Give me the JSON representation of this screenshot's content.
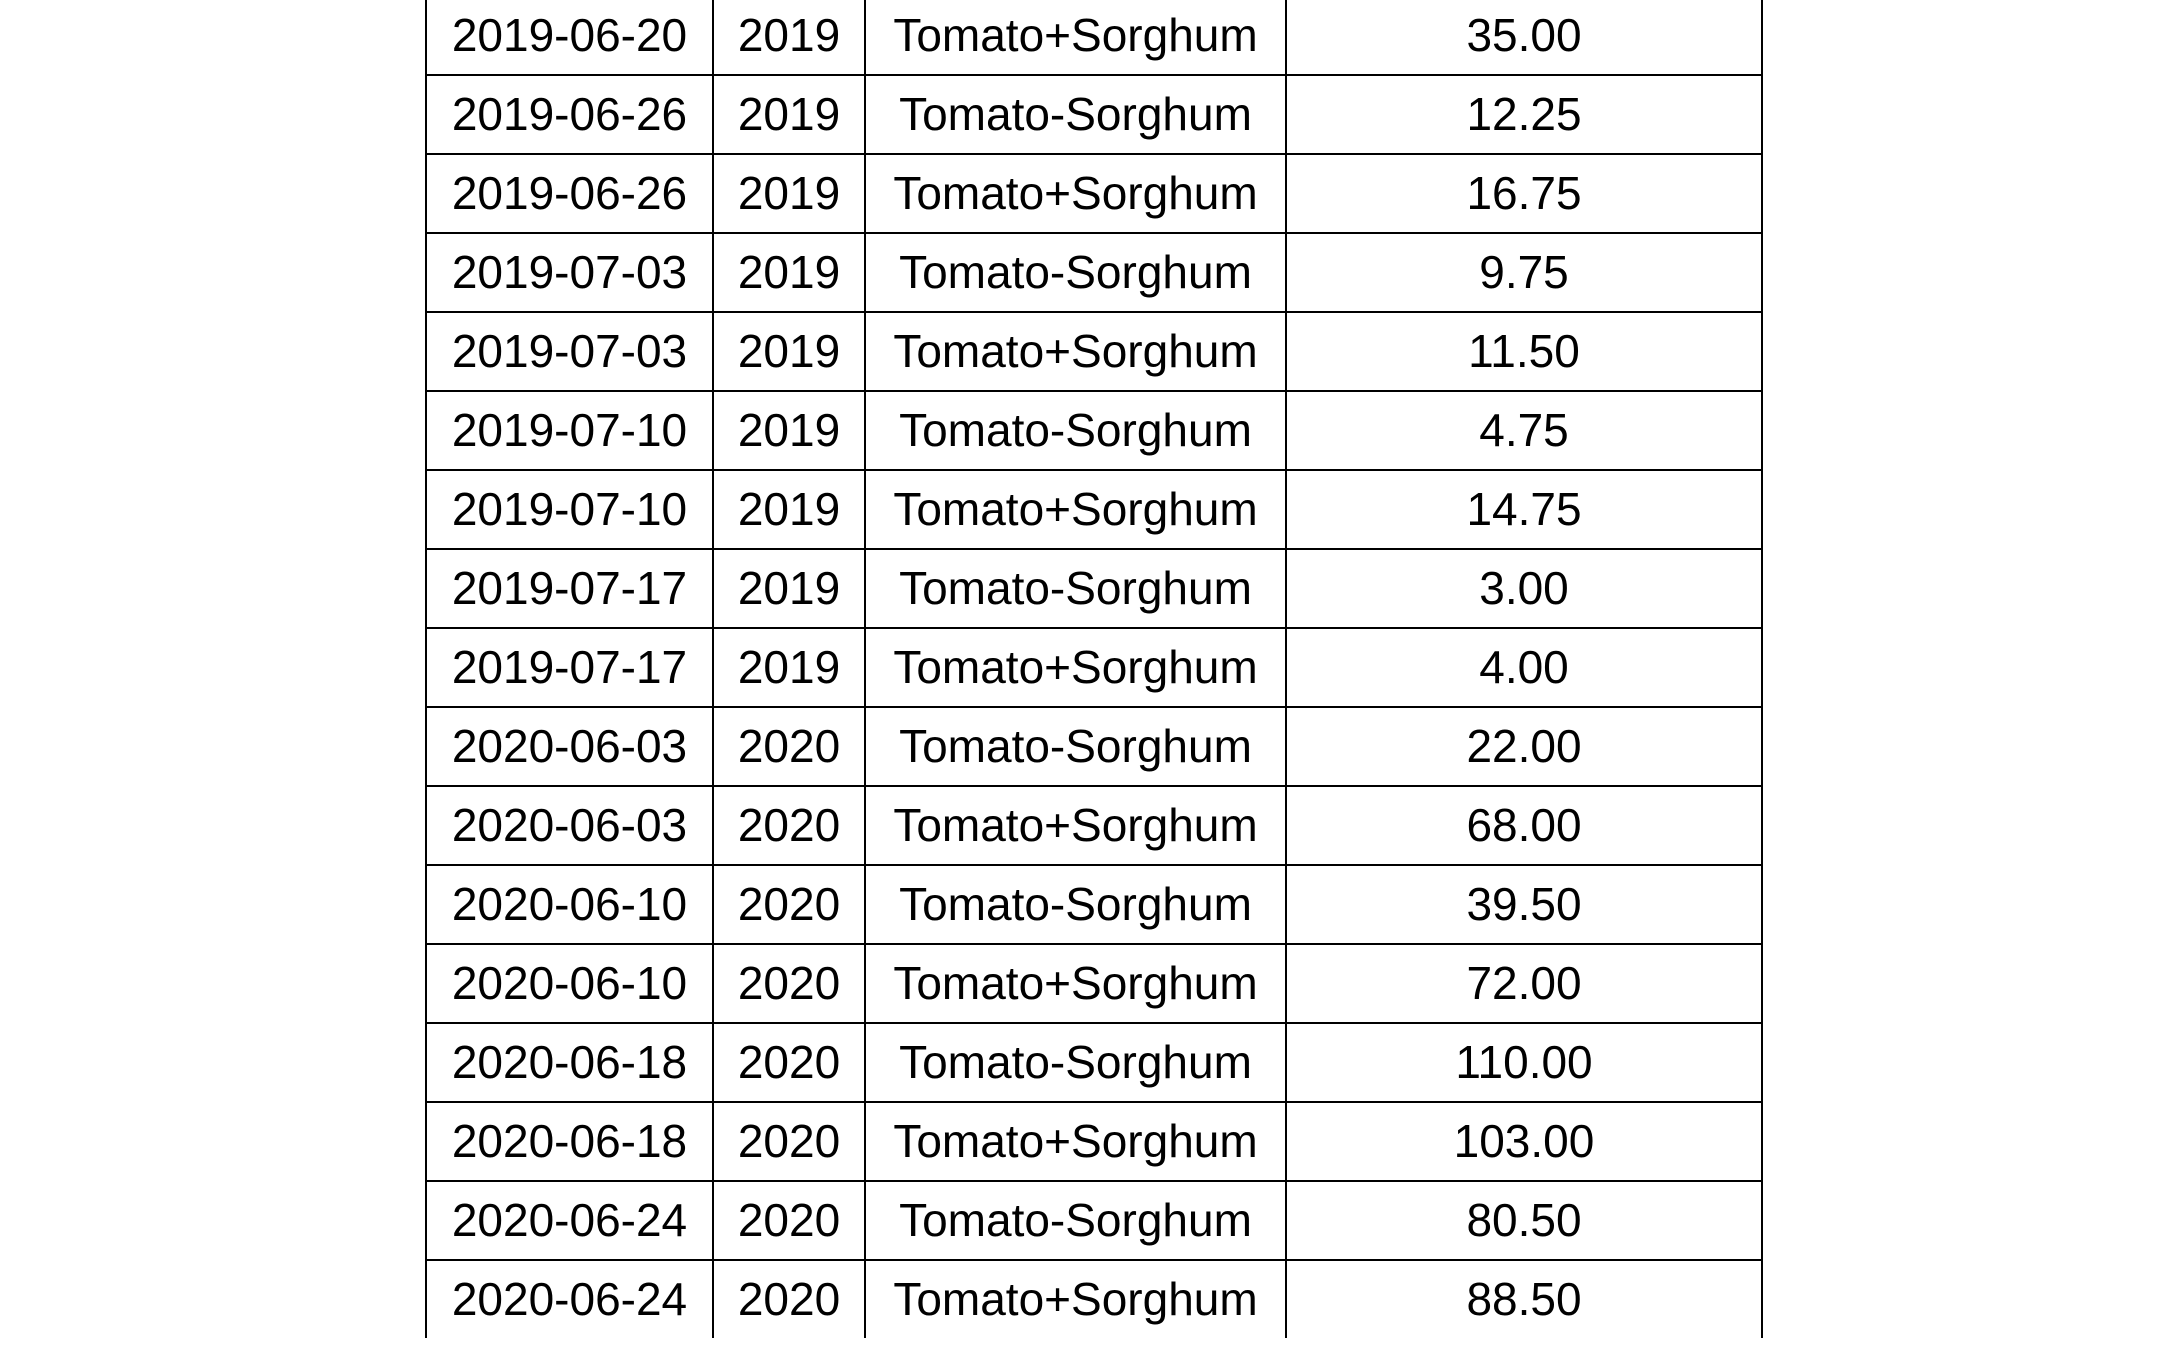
{
  "table": {
    "rows": [
      {
        "date": "2019-06-20",
        "year": "2019",
        "treatment": "Tomato+Sorghum",
        "value": "35.00"
      },
      {
        "date": "2019-06-26",
        "year": "2019",
        "treatment": "Tomato-Sorghum",
        "value": "12.25"
      },
      {
        "date": "2019-06-26",
        "year": "2019",
        "treatment": "Tomato+Sorghum",
        "value": "16.75"
      },
      {
        "date": "2019-07-03",
        "year": "2019",
        "treatment": "Tomato-Sorghum",
        "value": "9.75"
      },
      {
        "date": "2019-07-03",
        "year": "2019",
        "treatment": "Tomato+Sorghum",
        "value": "11.50"
      },
      {
        "date": "2019-07-10",
        "year": "2019",
        "treatment": "Tomato-Sorghum",
        "value": "4.75"
      },
      {
        "date": "2019-07-10",
        "year": "2019",
        "treatment": "Tomato+Sorghum",
        "value": "14.75"
      },
      {
        "date": "2019-07-17",
        "year": "2019",
        "treatment": "Tomato-Sorghum",
        "value": "3.00"
      },
      {
        "date": "2019-07-17",
        "year": "2019",
        "treatment": "Tomato+Sorghum",
        "value": "4.00"
      },
      {
        "date": "2020-06-03",
        "year": "2020",
        "treatment": "Tomato-Sorghum",
        "value": "22.00"
      },
      {
        "date": "2020-06-03",
        "year": "2020",
        "treatment": "Tomato+Sorghum",
        "value": "68.00"
      },
      {
        "date": "2020-06-10",
        "year": "2020",
        "treatment": "Tomato-Sorghum",
        "value": "39.50"
      },
      {
        "date": "2020-06-10",
        "year": "2020",
        "treatment": "Tomato+Sorghum",
        "value": "72.00"
      },
      {
        "date": "2020-06-18",
        "year": "2020",
        "treatment": "Tomato-Sorghum",
        "value": "110.00"
      },
      {
        "date": "2020-06-18",
        "year": "2020",
        "treatment": "Tomato+Sorghum",
        "value": "103.00"
      },
      {
        "date": "2020-06-24",
        "year": "2020",
        "treatment": "Tomato-Sorghum",
        "value": "80.50"
      },
      {
        "date": "2020-06-24",
        "year": "2020",
        "treatment": "Tomato+Sorghum",
        "value": "88.50"
      }
    ]
  }
}
